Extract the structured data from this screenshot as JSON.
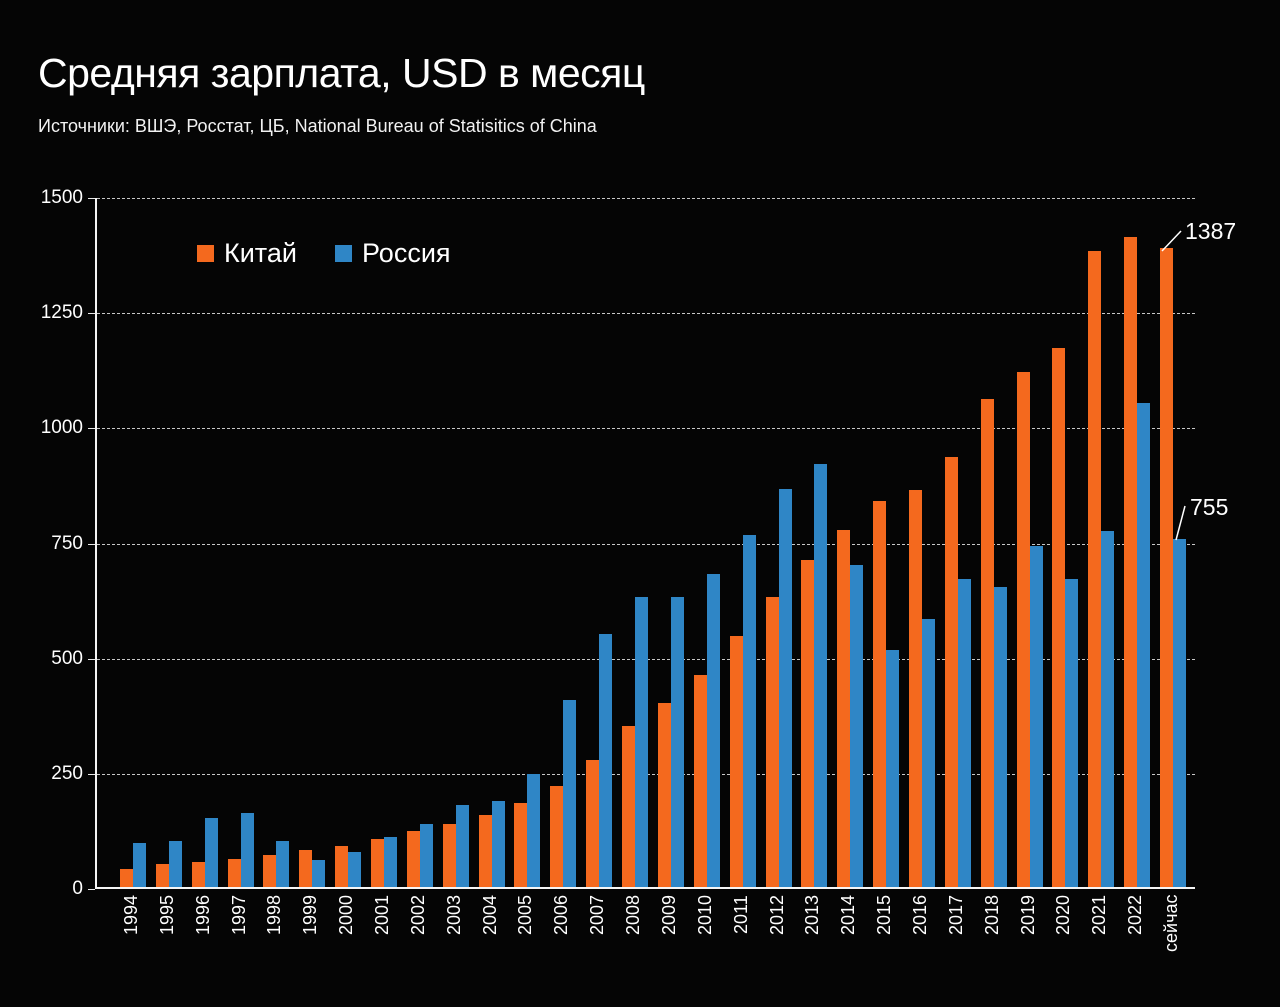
{
  "title": "Средняя зарплата, USD в месяц",
  "subtitle": "Источники: ВШЭ, Росстат, ЦБ, National Bureau of Statisitics of China",
  "legend": [
    {
      "label": "Китай",
      "color": "#f4691e"
    },
    {
      "label": "Россия",
      "color": "#2f86c6"
    }
  ],
  "chart_data": {
    "type": "bar",
    "title": "Средняя зарплата, USD в месяц",
    "source_note": "Источники: ВШЭ, Росстат, ЦБ, National Bureau of Statisitics of China",
    "categories": [
      "1994",
      "1995",
      "1996",
      "1997",
      "1998",
      "1999",
      "2000",
      "2001",
      "2002",
      "2003",
      "2004",
      "2005",
      "2006",
      "2007",
      "2008",
      "2009",
      "2010",
      "2011",
      "2012",
      "2013",
      "2014",
      "2015",
      "2016",
      "2017",
      "2018",
      "2019",
      "2020",
      "2021",
      "2022",
      "сейчас"
    ],
    "series": [
      {
        "name": "Китай",
        "color": "#f4691e",
        "values": [
          40,
          50,
          55,
          60,
          70,
          80,
          90,
          105,
          122,
          137,
          157,
          182,
          220,
          275,
          350,
          400,
          460,
          545,
          630,
          710,
          775,
          838,
          862,
          933,
          1060,
          1118,
          1170,
          1380,
          1410,
          1387
        ]
      },
      {
        "name": "Россия",
        "color": "#2f86c6",
        "values": [
          95,
          100,
          150,
          160,
          100,
          58,
          75,
          108,
          137,
          178,
          186,
          246,
          405,
          550,
          630,
          630,
          680,
          765,
          865,
          918,
          698,
          515,
          582,
          668,
          652,
          740,
          668,
          773,
          1050,
          755
        ]
      }
    ],
    "ylim": [
      0,
      1500
    ],
    "yticks": [
      0,
      250,
      500,
      750,
      1000,
      1250,
      1500
    ],
    "grid": "horizontal dashed",
    "legend_position": "inside top-left",
    "annotations": [
      {
        "series": "Китай",
        "category": "сейчас",
        "text": "1387"
      },
      {
        "series": "Россия",
        "category": "сейчас",
        "text": "755"
      }
    ]
  }
}
